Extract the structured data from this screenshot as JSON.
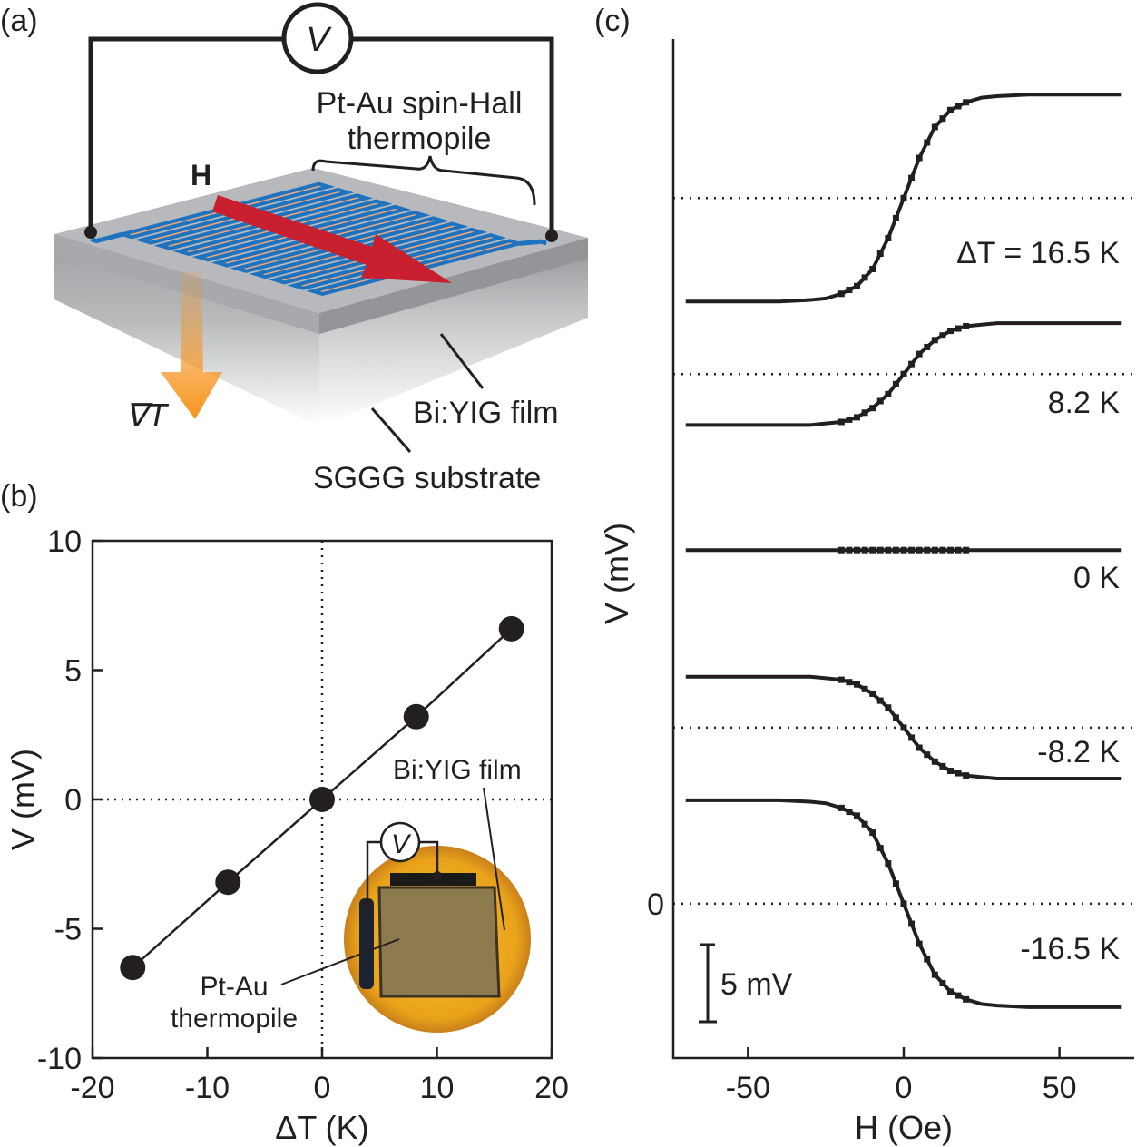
{
  "panel_a": {
    "label": "(a)",
    "voltmeter": "V",
    "thermopile_label_1": "Pt-Au spin-Hall",
    "thermopile_label_2": "thermopile",
    "field_label": "H",
    "gradient_label": "∇T",
    "film_label": "Bi:YIG film",
    "substrate_label": "SGGG substrate",
    "colors": {
      "stripe_fill": "#f4a97a",
      "stripe_edge": "#1e73c0",
      "field_arrow": "#c8202f",
      "gradient_arrow": "#f7941d",
      "slab": "#a7a9ac"
    }
  },
  "chart_data": [
    {
      "panel": "(b)",
      "type": "scatter",
      "xlabel": "ΔT (K)",
      "ylabel": "V (mV)",
      "xlim": [
        -20,
        20
      ],
      "ylim": [
        -10,
        10
      ],
      "xticks": [
        "-20",
        "-10",
        "0",
        "10",
        "20"
      ],
      "yticks": [
        "-10",
        "-5",
        "0",
        "5",
        "10"
      ],
      "x": [
        -16.5,
        -8.2,
        0,
        8.2,
        16.5
      ],
      "y": [
        -6.5,
        -3.2,
        0,
        3.2,
        6.6
      ],
      "fit_line": true,
      "zero_lines": "dotted",
      "inset": {
        "voltmeter": "V",
        "film_label": "Bi:YIG film",
        "thermopile_label_1": "Pt-Au",
        "thermopile_label_2": "thermopile"
      }
    },
    {
      "panel": "(c)",
      "type": "line",
      "xlabel": "H (Oe)",
      "ylabel": "V (mV)",
      "xlim": [
        -74,
        74
      ],
      "ylim": [
        -10,
        56
      ],
      "xticks": [
        "-50",
        "0",
        "50"
      ],
      "ytick_zero": "0",
      "scale_bar": "5 mV",
      "x": [
        -70,
        -60,
        -50,
        -40,
        -30,
        -25,
        -20,
        -15,
        -10,
        -5,
        0,
        5,
        10,
        15,
        20,
        25,
        30,
        40,
        50,
        60,
        70
      ],
      "series": [
        {
          "name": "ΔT = 16.5 K",
          "offset": 45.7,
          "values": [
            39.0,
            39.0,
            39.0,
            39.0,
            39.1,
            39.2,
            39.5,
            40.0,
            41.1,
            43.1,
            45.7,
            48.3,
            50.3,
            51.4,
            51.9,
            52.2,
            52.3,
            52.4,
            52.4,
            52.4,
            52.4
          ]
        },
        {
          "name": "8.2 K",
          "offset": 34.3,
          "values": [
            31.0,
            31.0,
            31.0,
            31.0,
            31.0,
            31.1,
            31.2,
            31.5,
            32.1,
            33.0,
            34.3,
            35.6,
            36.5,
            37.1,
            37.4,
            37.5,
            37.6,
            37.6,
            37.6,
            37.6,
            37.6
          ]
        },
        {
          "name": "0 K",
          "offset": 22.9,
          "values": [
            22.9,
            22.9,
            22.9,
            22.9,
            22.9,
            22.9,
            22.9,
            22.9,
            22.9,
            22.9,
            22.9,
            22.9,
            22.9,
            22.9,
            22.9,
            22.9,
            22.9,
            22.9,
            22.9,
            22.9,
            22.9
          ]
        },
        {
          "name": "-8.2 K",
          "offset": 11.4,
          "values": [
            14.7,
            14.7,
            14.7,
            14.7,
            14.7,
            14.6,
            14.5,
            14.2,
            13.6,
            12.7,
            11.4,
            10.1,
            9.2,
            8.6,
            8.3,
            8.2,
            8.1,
            8.1,
            8.1,
            8.1,
            8.1
          ]
        },
        {
          "name": "-16.5 K",
          "offset": 0,
          "values": [
            6.7,
            6.7,
            6.7,
            6.7,
            6.6,
            6.5,
            6.2,
            5.7,
            4.6,
            2.6,
            0,
            -2.6,
            -4.6,
            -5.7,
            -6.2,
            -6.5,
            -6.6,
            -6.7,
            -6.7,
            -6.7,
            -6.7
          ]
        }
      ]
    }
  ]
}
